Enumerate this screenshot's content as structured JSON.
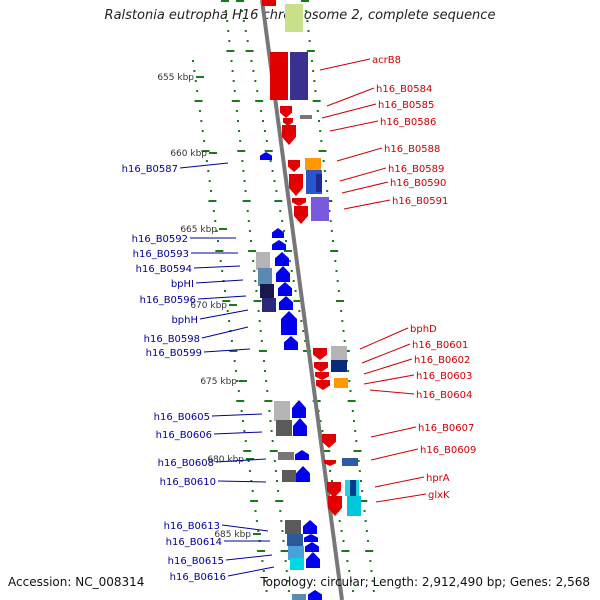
{
  "title": "Ralstonia eutropha H16 chromosome 2, complete sequence",
  "footer": {
    "accession": "Accession: NC_008314",
    "summary": "Topology: circular; Length: 2,912,490 bp; Genes: 2,568"
  },
  "colors": {
    "right_label": "#cc0000",
    "left_label": "#000099",
    "tick": "#1a7a1a",
    "backbone": "#888888"
  },
  "kbp_ticks": [
    "655 kbp",
    "660 kbp",
    "665 kbp",
    "670 kbp",
    "675 kbp",
    "680 kbp",
    "685 kbp"
  ],
  "right_labels": [
    "acrB8",
    "h16_B0584",
    "h16_B0585",
    "h16_B0586",
    "h16_B0588",
    "h16_B0589",
    "h16_B0590",
    "h16_B0591",
    "bphD",
    "h16_B0601",
    "h16_B0602",
    "h16_B0603",
    "h16_B0604",
    "h16_B0607",
    "h16_B0609",
    "hprA",
    "glxK"
  ],
  "left_labels": [
    "h16_B0587",
    "h16_B0592",
    "h16_B0593",
    "h16_B0594",
    "bpHI",
    "h16_B0596",
    "bphH",
    "h16_B0598",
    "h16_B0599",
    "h16_B0605",
    "h16_B0606",
    "h16_B0608",
    "h16_B0610",
    "h16_B0613",
    "h16_B0614",
    "h16_B0615",
    "h16_B0616"
  ]
}
